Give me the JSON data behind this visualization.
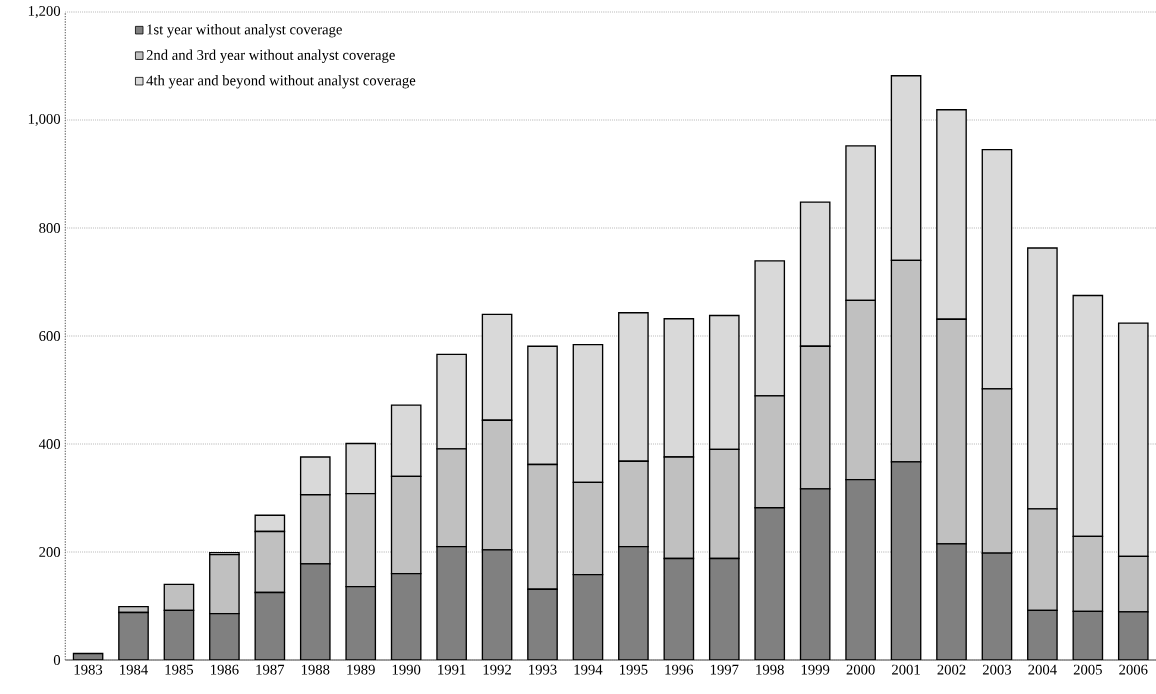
{
  "chart_data": {
    "type": "bar",
    "stacked": true,
    "categories": [
      "1983",
      "1984",
      "1985",
      "1986",
      "1987",
      "1988",
      "1989",
      "1990",
      "1991",
      "1992",
      "1993",
      "1994",
      "1995",
      "1996",
      "1997",
      "1998",
      "1999",
      "2000",
      "2001",
      "2002",
      "2003",
      "2004",
      "2005",
      "2006"
    ],
    "series": [
      {
        "name": "1st year without analyst coverage",
        "color": "#808080",
        "values": [
          12,
          88,
          92,
          86,
          125,
          178,
          136,
          160,
          210,
          204,
          131,
          158,
          210,
          188,
          188,
          282,
          317,
          334,
          367,
          215,
          198,
          92,
          90,
          89
        ]
      },
      {
        "name": "2nd and 3rd year without analyst coverage",
        "color": "#c0c0c0",
        "values": [
          0,
          11,
          48,
          109,
          113,
          128,
          172,
          180,
          181,
          240,
          231,
          171,
          158,
          188,
          202,
          207,
          264,
          332,
          373,
          416,
          304,
          188,
          139,
          103
        ]
      },
      {
        "name": "4th year and beyond without analyst coverage",
        "color": "#d9d9d9",
        "values": [
          0,
          0,
          0,
          4,
          30,
          70,
          93,
          132,
          175,
          196,
          219,
          255,
          275,
          256,
          248,
          250,
          267,
          286,
          342,
          388,
          443,
          483,
          446,
          432
        ]
      }
    ],
    "ylim": [
      0,
      1200
    ],
    "yticks": [
      0,
      200,
      400,
      600,
      800,
      {
        "value": 1000,
        "label": "1,000"
      },
      {
        "value": 1200,
        "label": "1,200"
      }
    ],
    "grid": "y",
    "legend": "top left"
  }
}
